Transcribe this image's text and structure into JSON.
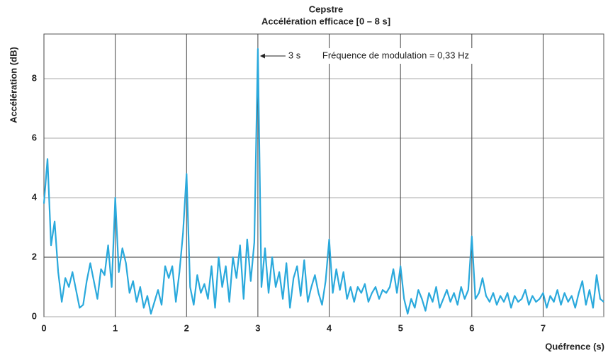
{
  "chart_data": {
    "type": "line",
    "title": "Cepstre",
    "subtitle": "Accélération efficace [0 – 8 s]",
    "y_label": "Accélération (dB)",
    "x_label": "Quéfrence (s)",
    "annotation": {
      "label": "3 s",
      "text": "Fréquence de modulation = 0,33 Hz"
    },
    "xlim": [
      0,
      7.85
    ],
    "ylim": [
      0,
      9.5
    ],
    "xticks": [
      0,
      1,
      2,
      3,
      4,
      5,
      6,
      7
    ],
    "yticks": [
      0,
      2,
      4,
      6,
      8
    ],
    "grid": true,
    "series": [
      {
        "name": "Cepstre",
        "color": "#2aa9dc",
        "x": [
          0,
          0.05,
          0.1,
          0.15,
          0.2,
          0.25,
          0.3,
          0.35,
          0.4,
          0.45,
          0.5,
          0.55,
          0.6,
          0.65,
          0.7,
          0.75,
          0.8,
          0.85,
          0.9,
          0.95,
          1,
          1.05,
          1.1,
          1.15,
          1.2,
          1.25,
          1.3,
          1.35,
          1.4,
          1.45,
          1.5,
          1.55,
          1.6,
          1.65,
          1.7,
          1.75,
          1.8,
          1.85,
          1.9,
          1.95,
          2,
          2.05,
          2.1,
          2.15,
          2.2,
          2.25,
          2.3,
          2.35,
          2.4,
          2.45,
          2.5,
          2.55,
          2.6,
          2.65,
          2.7,
          2.75,
          2.8,
          2.85,
          2.9,
          2.95,
          3,
          3.05,
          3.1,
          3.15,
          3.2,
          3.25,
          3.3,
          3.35,
          3.4,
          3.45,
          3.5,
          3.55,
          3.6,
          3.65,
          3.7,
          3.75,
          3.8,
          3.85,
          3.9,
          3.95,
          4,
          4.05,
          4.1,
          4.15,
          4.2,
          4.25,
          4.3,
          4.35,
          4.4,
          4.45,
          4.5,
          4.55,
          4.6,
          4.65,
          4.7,
          4.75,
          4.8,
          4.85,
          4.9,
          4.95,
          5,
          5.05,
          5.1,
          5.15,
          5.2,
          5.25,
          5.3,
          5.35,
          5.4,
          5.45,
          5.5,
          5.55,
          5.6,
          5.65,
          5.7,
          5.75,
          5.8,
          5.85,
          5.9,
          5.95,
          6,
          6.05,
          6.1,
          6.15,
          6.2,
          6.25,
          6.3,
          6.35,
          6.4,
          6.45,
          6.5,
          6.55,
          6.6,
          6.65,
          6.7,
          6.75,
          6.8,
          6.85,
          6.9,
          6.95,
          7,
          7.05,
          7.1,
          7.15,
          7.2,
          7.25,
          7.3,
          7.35,
          7.4,
          7.45,
          7.5,
          7.55,
          7.6,
          7.65,
          7.7,
          7.75,
          7.8,
          7.85
        ],
        "values": [
          3.8,
          5.3,
          2.4,
          3.2,
          1.5,
          0.5,
          1.3,
          1.0,
          1.5,
          0.9,
          0.3,
          0.4,
          1.2,
          1.8,
          1.2,
          0.6,
          1.6,
          1.4,
          2.4,
          1.0,
          4.0,
          1.5,
          2.3,
          1.8,
          0.8,
          1.2,
          0.5,
          1.0,
          0.3,
          0.7,
          0.1,
          0.5,
          0.9,
          0.4,
          1.7,
          1.3,
          1.7,
          0.5,
          1.5,
          2.8,
          4.8,
          1.0,
          0.4,
          1.4,
          0.8,
          1.1,
          0.6,
          1.7,
          0.3,
          2.0,
          1.0,
          1.7,
          0.5,
          2.0,
          1.3,
          2.4,
          0.6,
          2.6,
          1.2,
          2.5,
          9.0,
          1.0,
          2.3,
          0.8,
          2.0,
          1.0,
          1.5,
          0.6,
          1.8,
          0.3,
          1.3,
          1.7,
          0.7,
          1.9,
          0.5,
          1.0,
          1.4,
          0.8,
          0.4,
          1.2,
          2.6,
          0.8,
          1.6,
          0.9,
          1.5,
          0.6,
          1.0,
          0.5,
          1.0,
          0.8,
          1.1,
          0.5,
          0.8,
          1.0,
          0.6,
          0.9,
          0.8,
          1.0,
          1.6,
          0.8,
          1.7,
          0.6,
          0.1,
          0.6,
          0.3,
          0.9,
          0.6,
          0.2,
          0.8,
          0.5,
          1.0,
          0.3,
          0.6,
          0.9,
          0.5,
          0.8,
          0.4,
          1.0,
          0.6,
          0.9,
          2.7,
          0.6,
          0.8,
          1.3,
          0.7,
          0.5,
          0.8,
          0.4,
          0.7,
          0.5,
          0.8,
          0.3,
          0.7,
          0.5,
          0.6,
          0.9,
          0.4,
          0.7,
          0.5,
          0.6,
          0.8,
          0.3,
          0.7,
          0.5,
          0.9,
          0.4,
          0.8,
          0.5,
          0.7,
          0.3,
          0.8,
          1.2,
          0.4,
          0.9,
          0.3,
          1.4,
          0.6,
          0.5
        ]
      }
    ]
  }
}
